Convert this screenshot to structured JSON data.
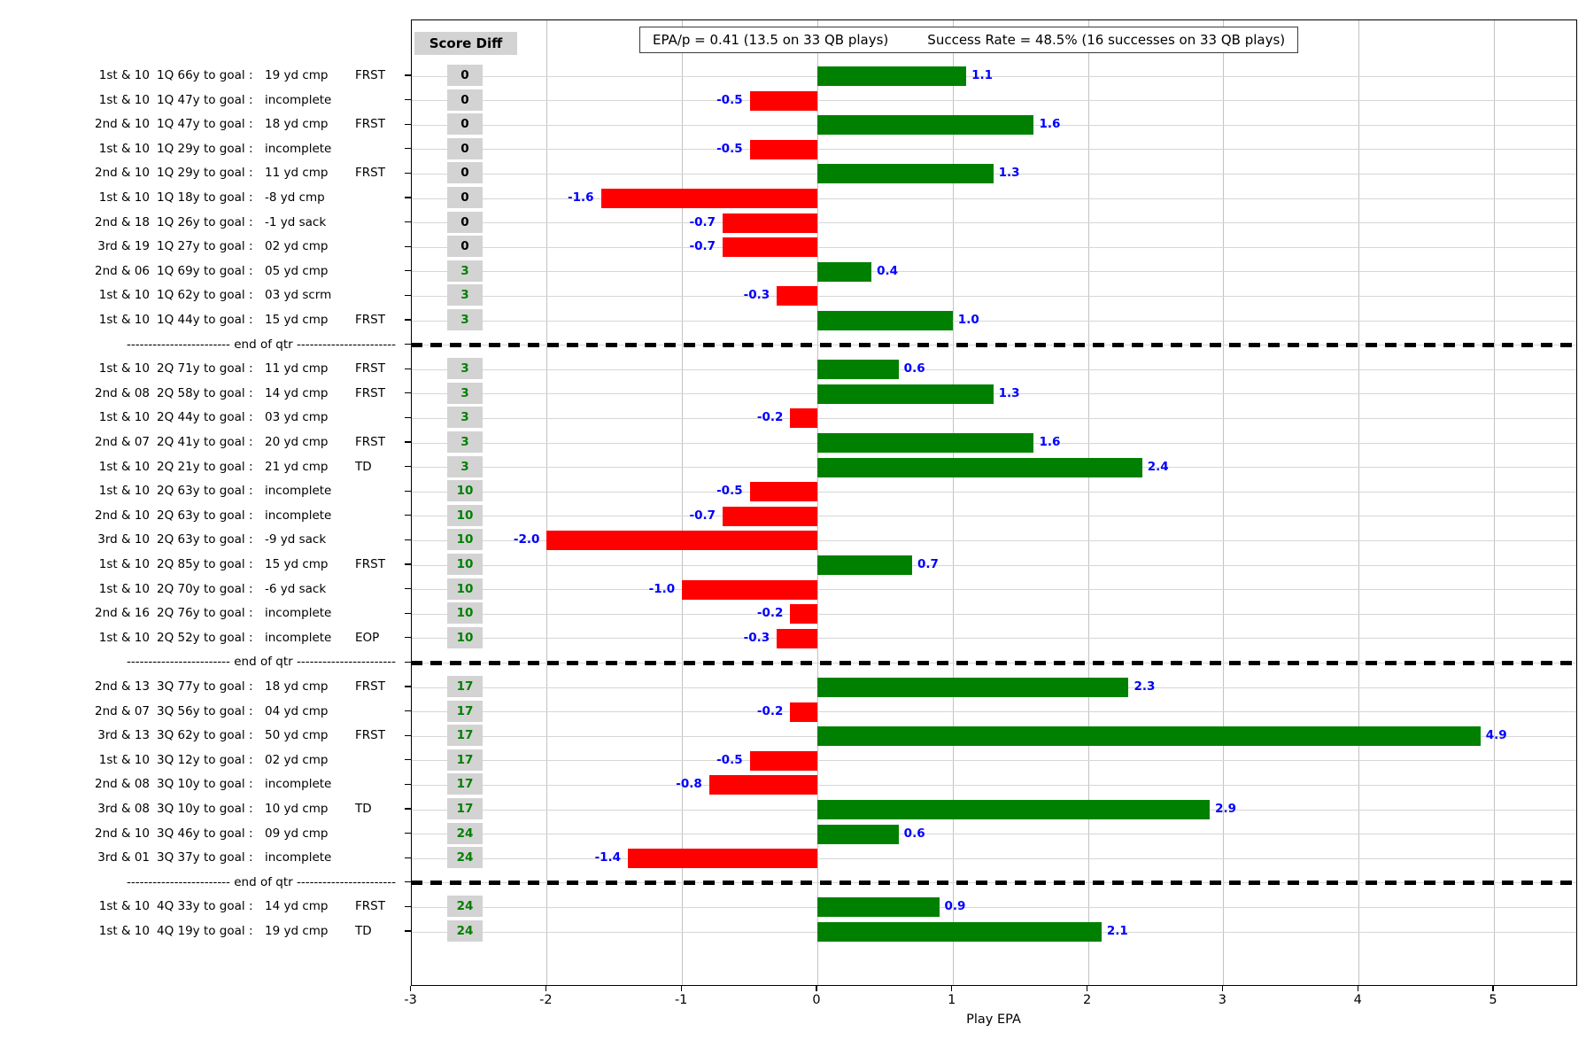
{
  "title_box": {
    "epa_text": "EPA/p = 0.41 (13.5 on 33 QB plays)",
    "success_text": "Success Rate = 48.5% (16 successes on 33 QB plays)"
  },
  "score_header": "Score Diff",
  "end_of_qtr_label": "------------------------ end of qtr -----------------------",
  "x_axis": {
    "label": "Play EPA",
    "ticks": [
      -3,
      -2,
      -1,
      0,
      1,
      2,
      3,
      4,
      5
    ]
  },
  "chart_data": {
    "type": "bar",
    "orientation": "horizontal",
    "title": "EPA/p = 0.41 (13.5 on 33 QB plays)    Success Rate = 48.5% (16 successes on 33 QB plays)",
    "xlabel": "Play EPA",
    "xlim": [
      -3,
      5.62
    ],
    "grid": true,
    "bar_colors": {
      "positive": "#008000",
      "negative": "#ff0000"
    },
    "value_label_color": "#0000ff",
    "score_colors": {
      "zero": "#000000",
      "nonzero": "#008000"
    },
    "rows": [
      {
        "type": "play",
        "down": "1st & 10",
        "situation": "1Q 66y to goal :",
        "result": "19 yd cmp",
        "marker": "FRST",
        "score_diff": "0",
        "epa": 1.1
      },
      {
        "type": "play",
        "down": "1st & 10",
        "situation": "1Q 47y to goal :",
        "result": "incomplete",
        "marker": "",
        "score_diff": "0",
        "epa": -0.5
      },
      {
        "type": "play",
        "down": "2nd & 10",
        "situation": "1Q 47y to goal :",
        "result": "18 yd cmp",
        "marker": "FRST",
        "score_diff": "0",
        "epa": 1.6
      },
      {
        "type": "play",
        "down": "1st & 10",
        "situation": "1Q 29y to goal :",
        "result": "incomplete",
        "marker": "",
        "score_diff": "0",
        "epa": -0.5
      },
      {
        "type": "play",
        "down": "2nd & 10",
        "situation": "1Q 29y to goal :",
        "result": "11 yd cmp",
        "marker": "FRST",
        "score_diff": "0",
        "epa": 1.3
      },
      {
        "type": "play",
        "down": "1st & 10",
        "situation": "1Q 18y to goal :",
        "result": "-8 yd cmp",
        "marker": "",
        "score_diff": "0",
        "epa": -1.6
      },
      {
        "type": "play",
        "down": "2nd & 18",
        "situation": "1Q 26y to goal :",
        "result": "-1 yd sack",
        "marker": "",
        "score_diff": "0",
        "epa": -0.7
      },
      {
        "type": "play",
        "down": "3rd & 19",
        "situation": "1Q 27y to goal :",
        "result": "02 yd cmp",
        "marker": "",
        "score_diff": "0",
        "epa": -0.7
      },
      {
        "type": "play",
        "down": "2nd & 06",
        "situation": "1Q 69y to goal :",
        "result": "05 yd cmp",
        "marker": "",
        "score_diff": "3",
        "epa": 0.4
      },
      {
        "type": "play",
        "down": "1st & 10",
        "situation": "1Q 62y to goal :",
        "result": "03 yd scrm",
        "marker": "",
        "score_diff": "3",
        "epa": -0.3
      },
      {
        "type": "play",
        "down": "1st & 10",
        "situation": "1Q 44y to goal :",
        "result": "15 yd cmp",
        "marker": "FRST",
        "score_diff": "3",
        "epa": 1.0
      },
      {
        "type": "qtr_break"
      },
      {
        "type": "play",
        "down": "1st & 10",
        "situation": "2Q 71y to goal :",
        "result": "11 yd cmp",
        "marker": "FRST",
        "score_diff": "3",
        "epa": 0.6
      },
      {
        "type": "play",
        "down": "2nd & 08",
        "situation": "2Q 58y to goal :",
        "result": "14 yd cmp",
        "marker": "FRST",
        "score_diff": "3",
        "epa": 1.3
      },
      {
        "type": "play",
        "down": "1st & 10",
        "situation": "2Q 44y to goal :",
        "result": "03 yd cmp",
        "marker": "",
        "score_diff": "3",
        "epa": -0.2
      },
      {
        "type": "play",
        "down": "2nd & 07",
        "situation": "2Q 41y to goal :",
        "result": "20 yd cmp",
        "marker": "FRST",
        "score_diff": "3",
        "epa": 1.6
      },
      {
        "type": "play",
        "down": "1st & 10",
        "situation": "2Q 21y to goal :",
        "result": "21 yd cmp",
        "marker": "TD",
        "score_diff": "3",
        "epa": 2.4
      },
      {
        "type": "play",
        "down": "1st & 10",
        "situation": "2Q 63y to goal :",
        "result": "incomplete",
        "marker": "",
        "score_diff": "10",
        "epa": -0.5
      },
      {
        "type": "play",
        "down": "2nd & 10",
        "situation": "2Q 63y to goal :",
        "result": "incomplete",
        "marker": "",
        "score_diff": "10",
        "epa": -0.7
      },
      {
        "type": "play",
        "down": "3rd & 10",
        "situation": "2Q 63y to goal :",
        "result": "-9 yd sack",
        "marker": "",
        "score_diff": "10",
        "epa": -2.0
      },
      {
        "type": "play",
        "down": "1st & 10",
        "situation": "2Q 85y to goal :",
        "result": "15 yd cmp",
        "marker": "FRST",
        "score_diff": "10",
        "epa": 0.7
      },
      {
        "type": "play",
        "down": "1st & 10",
        "situation": "2Q 70y to goal :",
        "result": "-6 yd sack",
        "marker": "",
        "score_diff": "10",
        "epa": -1.0
      },
      {
        "type": "play",
        "down": "2nd & 16",
        "situation": "2Q 76y to goal :",
        "result": "incomplete",
        "marker": "",
        "score_diff": "10",
        "epa": -0.2
      },
      {
        "type": "play",
        "down": "1st & 10",
        "situation": "2Q 52y to goal :",
        "result": "incomplete",
        "marker": "EOP",
        "score_diff": "10",
        "epa": -0.3
      },
      {
        "type": "qtr_break"
      },
      {
        "type": "play",
        "down": "2nd & 13",
        "situation": "3Q 77y to goal :",
        "result": "18 yd cmp",
        "marker": "FRST",
        "score_diff": "17",
        "epa": 2.3
      },
      {
        "type": "play",
        "down": "2nd & 07",
        "situation": "3Q 56y to goal :",
        "result": "04 yd cmp",
        "marker": "",
        "score_diff": "17",
        "epa": -0.2
      },
      {
        "type": "play",
        "down": "3rd & 13",
        "situation": "3Q 62y to goal :",
        "result": "50 yd cmp",
        "marker": "FRST",
        "score_diff": "17",
        "epa": 4.9
      },
      {
        "type": "play",
        "down": "1st & 10",
        "situation": "3Q 12y to goal :",
        "result": "02 yd cmp",
        "marker": "",
        "score_diff": "17",
        "epa": -0.5
      },
      {
        "type": "play",
        "down": "2nd & 08",
        "situation": "3Q 10y to goal :",
        "result": "incomplete",
        "marker": "",
        "score_diff": "17",
        "epa": -0.8
      },
      {
        "type": "play",
        "down": "3rd & 08",
        "situation": "3Q 10y to goal :",
        "result": "10 yd cmp",
        "marker": "TD",
        "score_diff": "17",
        "epa": 2.9
      },
      {
        "type": "play",
        "down": "2nd & 10",
        "situation": "3Q 46y to goal :",
        "result": "09 yd cmp",
        "marker": "",
        "score_diff": "24",
        "epa": 0.6
      },
      {
        "type": "play",
        "down": "3rd & 01",
        "situation": "3Q 37y to goal :",
        "result": "incomplete",
        "marker": "",
        "score_diff": "24",
        "epa": -1.4
      },
      {
        "type": "qtr_break"
      },
      {
        "type": "play",
        "down": "1st & 10",
        "situation": "4Q 33y to goal :",
        "result": "14 yd cmp",
        "marker": "FRST",
        "score_diff": "24",
        "epa": 0.9
      },
      {
        "type": "play",
        "down": "1st & 10",
        "situation": "4Q 19y to goal :",
        "result": "19 yd cmp",
        "marker": "TD",
        "score_diff": "24",
        "epa": 2.1
      }
    ]
  }
}
